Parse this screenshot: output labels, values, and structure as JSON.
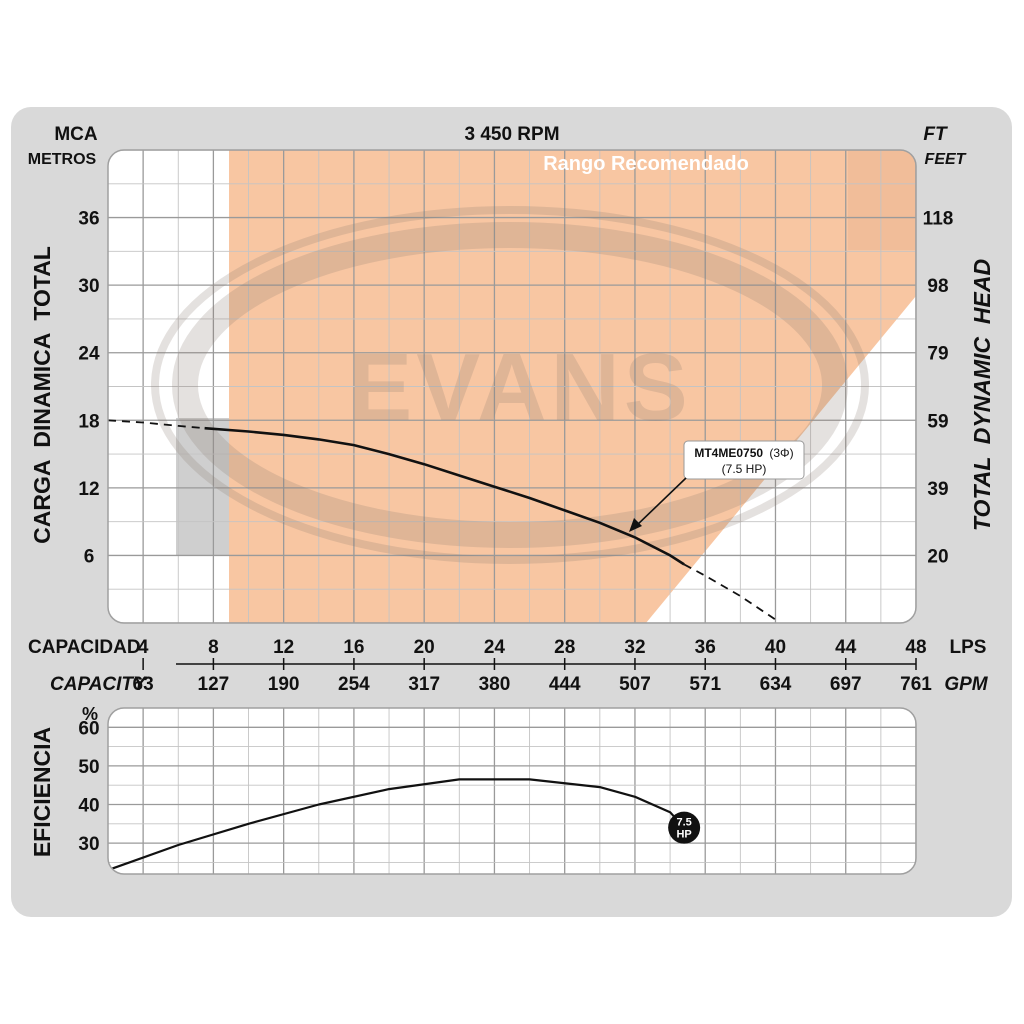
{
  "chart_data": [
    {
      "type": "line",
      "title": "3 450 RPM",
      "left_unit": "MCA",
      "left_unit_sub": "METROS",
      "right_unit": "FT",
      "right_unit_sub": "FEET",
      "ylabel": "CARGA  DINAMICA  TOTAL",
      "ylabel_right": "TOTAL  DYNAMIC  HEAD",
      "xlabel": "CAPACIDAD",
      "xlabel_unit": "LPS",
      "xlabel_secondary": "CAPACITY",
      "xlabel_secondary_unit": "GPM",
      "xlim": [
        2,
        48
      ],
      "ylim": [
        0,
        42
      ],
      "grid": true,
      "x_ticks": [
        "4",
        "8",
        "12",
        "16",
        "20",
        "24",
        "28",
        "32",
        "36",
        "40",
        "44",
        "48"
      ],
      "x_ticks_gpm": [
        "63",
        "127",
        "190",
        "254",
        "317",
        "380",
        "444",
        "507",
        "571",
        "634",
        "697",
        "761"
      ],
      "y_ticks": [
        "6",
        "12",
        "18",
        "24",
        "30",
        "36"
      ],
      "y_ticks_ft": [
        "20",
        "39",
        "59",
        "79",
        "98",
        "118"
      ],
      "recommended_range_label": "Rango Recomendado",
      "watermark": "EVANS",
      "series": [
        {
          "name": "MT4ME0750",
          "label_suffix": "(3Φ)",
          "label_line2": "(7.5 HP)",
          "x": [
            2,
            4,
            6,
            7.5,
            10,
            12,
            14,
            16,
            18,
            20,
            22,
            24,
            26,
            28,
            30,
            32,
            34,
            34.8,
            36,
            38,
            40
          ],
          "y": [
            18,
            17.8,
            17.5,
            17.3,
            17,
            16.7,
            16.3,
            15.8,
            15,
            14.1,
            13.1,
            12.1,
            11.1,
            10,
            8.9,
            7.6,
            6,
            5.2,
            4.2,
            2.4,
            0.3
          ],
          "solid_range": [
            7.5,
            34.8
          ]
        }
      ]
    },
    {
      "type": "line",
      "ylabel": "EFICIENCIA",
      "y_unit": "%",
      "xlim": [
        2,
        48
      ],
      "ylim": [
        22,
        65
      ],
      "y_ticks": [
        "30",
        "40",
        "50",
        "60"
      ],
      "grid": true,
      "end_badge": [
        "7.5",
        "HP"
      ],
      "series": [
        {
          "name": "7.5 HP",
          "x": [
            2,
            6,
            10,
            14,
            18,
            22,
            26,
            30,
            32,
            34,
            34.8
          ],
          "y": [
            23,
            29.5,
            35,
            40,
            44,
            46.5,
            46.5,
            44.5,
            42,
            38,
            34
          ]
        }
      ]
    }
  ]
}
